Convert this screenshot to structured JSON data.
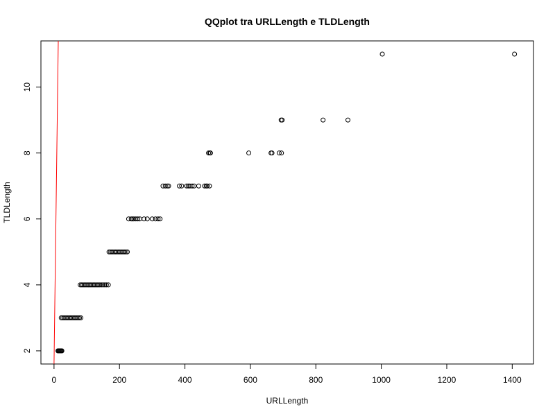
{
  "chart_data": {
    "type": "scatter",
    "title": "QQplot tra URLLength e TLDLength",
    "xlabel": "URLLength",
    "ylabel": "TLDLength",
    "xlim": [
      -40,
      1465
    ],
    "ylim": [
      1.6,
      11.4
    ],
    "xticks": [
      0,
      200,
      400,
      600,
      800,
      1000,
      1200,
      1400
    ],
    "yticks": [
      2,
      4,
      6,
      8,
      10
    ],
    "grid": false,
    "marker": "open-circle",
    "point_color": "#000000",
    "reference_line": {
      "color": "#ff0000",
      "x": [
        0,
        13
      ],
      "y": [
        1.6,
        11.4
      ]
    },
    "series": [
      {
        "points": [
          [
            12,
            2
          ],
          [
            14,
            2
          ],
          [
            16,
            2
          ],
          [
            18,
            2
          ],
          [
            20,
            2
          ],
          [
            22,
            2
          ],
          [
            24,
            2
          ],
          [
            22,
            3
          ],
          [
            26,
            3
          ],
          [
            30,
            3
          ],
          [
            34,
            3
          ],
          [
            38,
            3
          ],
          [
            42,
            3
          ],
          [
            46,
            3
          ],
          [
            50,
            3
          ],
          [
            54,
            3
          ],
          [
            58,
            3
          ],
          [
            62,
            3
          ],
          [
            66,
            3
          ],
          [
            70,
            3
          ],
          [
            74,
            3
          ],
          [
            78,
            3
          ],
          [
            82,
            3
          ],
          [
            80,
            4
          ],
          [
            84,
            4
          ],
          [
            88,
            4
          ],
          [
            92,
            4
          ],
          [
            96,
            4
          ],
          [
            100,
            4
          ],
          [
            104,
            4
          ],
          [
            108,
            4
          ],
          [
            112,
            4
          ],
          [
            116,
            4
          ],
          [
            120,
            4
          ],
          [
            124,
            4
          ],
          [
            128,
            4
          ],
          [
            132,
            4
          ],
          [
            136,
            4
          ],
          [
            140,
            4
          ],
          [
            145,
            4
          ],
          [
            150,
            4
          ],
          [
            155,
            4
          ],
          [
            160,
            4
          ],
          [
            166,
            4
          ],
          [
            168,
            5
          ],
          [
            172,
            5
          ],
          [
            176,
            5
          ],
          [
            180,
            5
          ],
          [
            184,
            5
          ],
          [
            188,
            5
          ],
          [
            192,
            5
          ],
          [
            196,
            5
          ],
          [
            200,
            5
          ],
          [
            204,
            5
          ],
          [
            208,
            5
          ],
          [
            212,
            5
          ],
          [
            216,
            5
          ],
          [
            220,
            5
          ],
          [
            224,
            5
          ],
          [
            228,
            6
          ],
          [
            236,
            6
          ],
          [
            240,
            6
          ],
          [
            244,
            6
          ],
          [
            250,
            6
          ],
          [
            256,
            6
          ],
          [
            262,
            6
          ],
          [
            275,
            6
          ],
          [
            285,
            6
          ],
          [
            300,
            6
          ],
          [
            310,
            6
          ],
          [
            318,
            6
          ],
          [
            324,
            6
          ],
          [
            333,
            7
          ],
          [
            340,
            7
          ],
          [
            346,
            7
          ],
          [
            350,
            7
          ],
          [
            383,
            7
          ],
          [
            390,
            7
          ],
          [
            405,
            7
          ],
          [
            410,
            7
          ],
          [
            415,
            7
          ],
          [
            422,
            7
          ],
          [
            428,
            7
          ],
          [
            442,
            7
          ],
          [
            460,
            7
          ],
          [
            465,
            7
          ],
          [
            468,
            7
          ],
          [
            475,
            7
          ],
          [
            472,
            8
          ],
          [
            476,
            8
          ],
          [
            478,
            8
          ],
          [
            595,
            8
          ],
          [
            663,
            8
          ],
          [
            666,
            8
          ],
          [
            688,
            8
          ],
          [
            695,
            8
          ],
          [
            694,
            9
          ],
          [
            697,
            9
          ],
          [
            822,
            9
          ],
          [
            898,
            9
          ],
          [
            1003,
            11
          ],
          [
            1407,
            11
          ]
        ]
      }
    ]
  }
}
